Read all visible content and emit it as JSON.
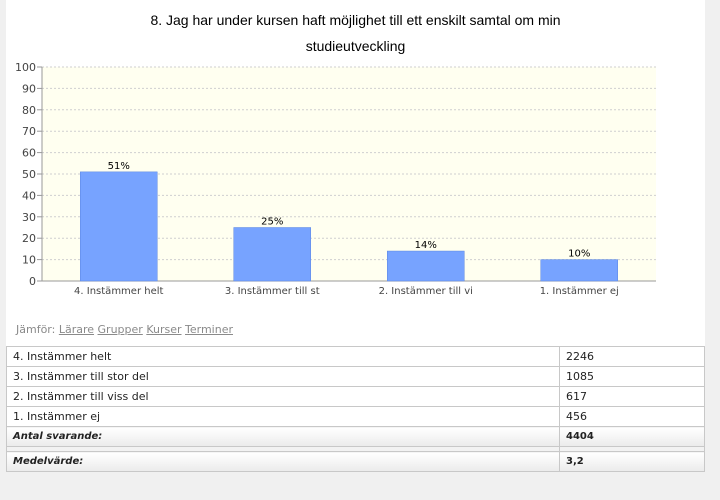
{
  "chart_data": {
    "type": "bar",
    "title_line1": "8. Jag har under kursen haft möjlighet till ett enskilt samtal om min",
    "title_line2": "studieutveckling",
    "categories": [
      "4. Instämmer helt",
      "3. Instämmer till st",
      "2. Instämmer till vi",
      "1. Instämmer ej"
    ],
    "values": [
      51,
      25,
      14,
      10
    ],
    "value_labels": [
      "51%",
      "25%",
      "14%",
      "10%"
    ],
    "ylim": [
      0,
      100
    ],
    "yticks": [
      0,
      10,
      20,
      30,
      40,
      50,
      60,
      70,
      80,
      90,
      100
    ],
    "grid": true,
    "colors": {
      "bar": "#77a3ff",
      "bar_border": "#5b86e0",
      "plot_bg": "#fffff0"
    }
  },
  "compare": {
    "label": "Jämför:",
    "links": [
      "Lärare",
      "Grupper",
      "Kurser",
      "Terminer"
    ]
  },
  "table": {
    "rows": [
      {
        "label": "4. Instämmer helt",
        "value": "2246"
      },
      {
        "label": "3. Instämmer till stor del",
        "value": "1085"
      },
      {
        "label": "2. Instämmer till viss del",
        "value": "617"
      },
      {
        "label": "1. Instämmer ej",
        "value": "456"
      }
    ],
    "total": {
      "label": "Antal svarande:",
      "value": "4404"
    },
    "mean": {
      "label": "Medelvärde:",
      "value": "3,2"
    }
  }
}
